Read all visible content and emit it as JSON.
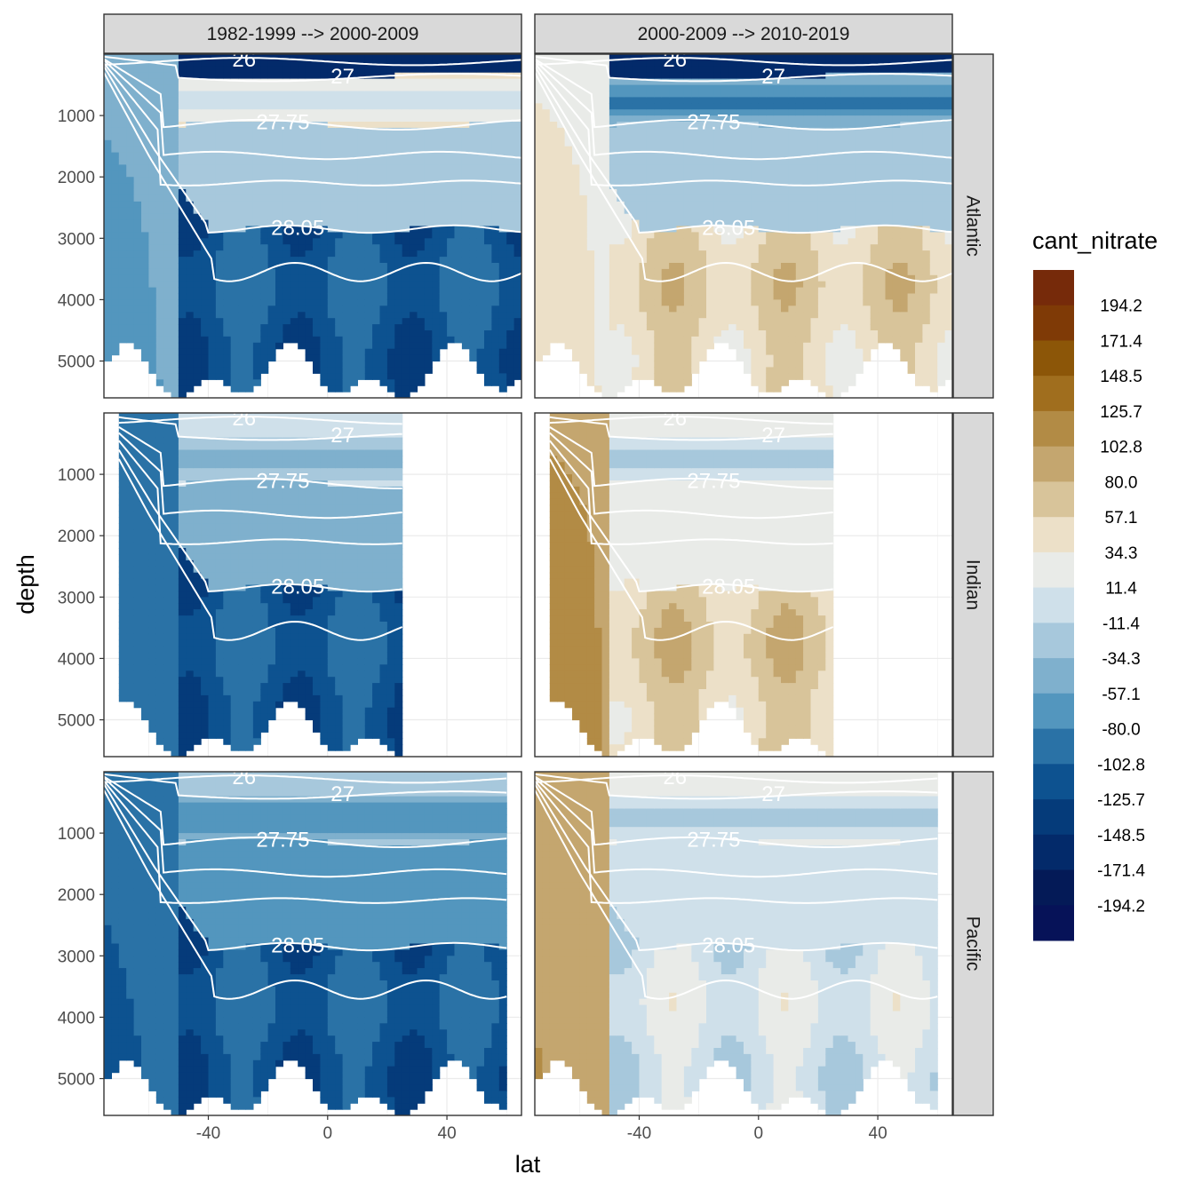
{
  "chart_data": {
    "type": "heatmap",
    "subtype": "faceted filled contour sections",
    "xlabel": "lat",
    "ylabel": "depth",
    "x_ticks": [
      -40,
      0,
      40
    ],
    "y_ticks": [
      1000,
      2000,
      3000,
      4000,
      5000
    ],
    "xlim": [
      -75,
      65
    ],
    "ylim": [
      5600,
      0
    ],
    "y_reversed": true,
    "col_facets": [
      "1982-1999 --> 2000-2009",
      "2000-2009 --> 2010-2019"
    ],
    "row_facets": [
      "Atlantic",
      "Indian",
      "Pacific"
    ],
    "legend": {
      "title": "cant_nitrate",
      "position": "right",
      "labels": [
        "194.2",
        "171.4",
        "148.5",
        "125.7",
        "102.8",
        "80.0",
        "57.1",
        "34.3",
        "11.4",
        "-11.4",
        "-34.3",
        "-57.1",
        "-80.0",
        "-102.8",
        "-125.7",
        "-148.5",
        "-171.4",
        "-194.2"
      ],
      "colors": [
        "#67180a",
        "#762a0a",
        "#7f3a06",
        "#8c5608",
        "#a06e1e",
        "#b28b45",
        "#c4a66f",
        "#d8c49a",
        "#ece0c8",
        "#e9ebe8",
        "#cfe0ea",
        "#a7c8dc",
        "#7fb0cd",
        "#5396be",
        "#2a72a6",
        "#0d5290",
        "#053b7a",
        "#032a6a",
        "#041a57",
        "#061258"
      ]
    },
    "isopycnal_labels": [
      "26",
      "27",
      "27.75",
      "28.05"
    ],
    "panels": [
      {
        "row": "Atlantic",
        "col": "1982-1999 --> 2000-2009",
        "sign": "negative",
        "surface": -150,
        "intermediate": 20,
        "deep": -110,
        "abyss_south": -50,
        "lat_range": [
          -75,
          65
        ],
        "max_depth": 5600
      },
      {
        "row": "Atlantic",
        "col": "2000-2009 --> 2010-2019",
        "sign": "positive",
        "surface": -150,
        "intermediate": -60,
        "deep": 55,
        "abyss_south": 30,
        "lat_range": [
          -75,
          65
        ],
        "max_depth": 5600
      },
      {
        "row": "Indian",
        "col": "1982-1999 --> 2000-2009",
        "sign": "negative",
        "surface": 0,
        "intermediate": -20,
        "deep": -110,
        "abyss_south": -80,
        "lat_range": [
          -70,
          25
        ],
        "max_depth": 5600
      },
      {
        "row": "Indian",
        "col": "2000-2009 --> 2010-2019",
        "sign": "positive",
        "surface": 20,
        "intermediate": 0,
        "deep": 60,
        "abyss_south": 100,
        "lat_range": [
          -70,
          25
        ],
        "max_depth": 5600
      },
      {
        "row": "Pacific",
        "col": "1982-1999 --> 2000-2009",
        "sign": "negative",
        "surface": -30,
        "intermediate": -50,
        "deep": -110,
        "abyss_south": -90,
        "lat_range": [
          -75,
          60
        ],
        "max_depth": 5600
      },
      {
        "row": "Pacific",
        "col": "2000-2009 --> 2010-2019",
        "sign": "positive",
        "surface": 20,
        "intermediate": 0,
        "deep": 5,
        "abyss_south": 80,
        "lat_range": [
          -75,
          60
        ],
        "max_depth": 5600
      }
    ]
  }
}
